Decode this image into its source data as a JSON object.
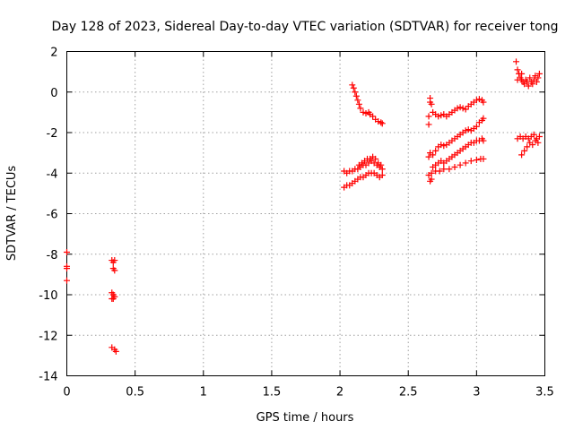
{
  "chart_data": {
    "type": "scatter",
    "title": "Day 128 of 2023, Sidereal Day-to-day VTEC variation (SDTVAR) for receiver tong",
    "xlabel": "GPS time / hours",
    "ylabel": "SDTVAR / TECUs",
    "xlim": [
      0,
      3.5
    ],
    "ylim": [
      -14,
      2
    ],
    "xticks": [
      0,
      0.5,
      1,
      1.5,
      2,
      2.5,
      3,
      3.5
    ],
    "yticks": [
      -14,
      -12,
      -10,
      -8,
      -6,
      -4,
      -2,
      0,
      2
    ],
    "xtick_labels": [
      "0",
      "0.5",
      "1",
      "1.5",
      "2",
      "2.5",
      "3",
      "3.5"
    ],
    "ytick_labels": [
      "-14",
      "-12",
      "-10",
      "-8",
      "-6",
      "-4",
      "-2",
      "0",
      "2"
    ],
    "grid": true,
    "marker": "+",
    "color": "#ff0000",
    "series": [
      {
        "points": [
          [
            0.0,
            -7.9
          ],
          [
            0.0,
            -8.6
          ],
          [
            0.0,
            -8.7
          ],
          [
            0.0,
            -9.3
          ],
          [
            0.33,
            -8.3
          ],
          [
            0.34,
            -8.4
          ],
          [
            0.35,
            -8.3
          ],
          [
            0.34,
            -8.7
          ],
          [
            0.35,
            -8.8
          ],
          [
            0.33,
            -9.9
          ],
          [
            0.34,
            -10.0
          ],
          [
            0.35,
            -10.1
          ],
          [
            0.34,
            -10.2
          ],
          [
            0.33,
            -10.2
          ],
          [
            0.33,
            -12.6
          ],
          [
            0.35,
            -12.7
          ],
          [
            0.36,
            -12.8
          ],
          [
            2.09,
            0.35
          ],
          [
            2.1,
            0.2
          ],
          [
            2.11,
            0.0
          ],
          [
            2.12,
            -0.2
          ],
          [
            2.13,
            -0.4
          ],
          [
            2.14,
            -0.6
          ],
          [
            2.15,
            -0.8
          ],
          [
            2.17,
            -1.0
          ],
          [
            2.19,
            -1.05
          ],
          [
            2.21,
            -1.0
          ],
          [
            2.22,
            -1.1
          ],
          [
            2.24,
            -1.2
          ],
          [
            2.26,
            -1.35
          ],
          [
            2.28,
            -1.45
          ],
          [
            2.3,
            -1.5
          ],
          [
            2.31,
            -1.55
          ],
          [
            2.03,
            -4.7
          ],
          [
            2.05,
            -4.6
          ],
          [
            2.07,
            -4.6
          ],
          [
            2.09,
            -4.5
          ],
          [
            2.11,
            -4.4
          ],
          [
            2.13,
            -4.3
          ],
          [
            2.15,
            -4.2
          ],
          [
            2.17,
            -4.2
          ],
          [
            2.19,
            -4.1
          ],
          [
            2.21,
            -4.0
          ],
          [
            2.23,
            -4.0
          ],
          [
            2.25,
            -4.0
          ],
          [
            2.27,
            -4.1
          ],
          [
            2.29,
            -4.2
          ],
          [
            2.31,
            -4.1
          ],
          [
            2.03,
            -3.9
          ],
          [
            2.05,
            -4.0
          ],
          [
            2.07,
            -3.9
          ],
          [
            2.09,
            -3.9
          ],
          [
            2.11,
            -3.8
          ],
          [
            2.13,
            -3.8
          ],
          [
            2.15,
            -3.7
          ],
          [
            2.17,
            -3.6
          ],
          [
            2.19,
            -3.6
          ],
          [
            2.21,
            -3.5
          ],
          [
            2.23,
            -3.4
          ],
          [
            2.25,
            -3.5
          ],
          [
            2.27,
            -3.6
          ],
          [
            2.29,
            -3.7
          ],
          [
            2.31,
            -3.8
          ],
          [
            2.14,
            -3.6
          ],
          [
            2.16,
            -3.5
          ],
          [
            2.18,
            -3.4
          ],
          [
            2.2,
            -3.3
          ],
          [
            2.22,
            -3.3
          ],
          [
            2.24,
            -3.2
          ],
          [
            2.26,
            -3.3
          ],
          [
            2.28,
            -3.5
          ],
          [
            2.3,
            -3.6
          ],
          [
            2.65,
            -1.6
          ],
          [
            2.65,
            -1.2
          ],
          [
            2.66,
            -0.5
          ],
          [
            2.66,
            -0.3
          ],
          [
            2.67,
            -0.6
          ],
          [
            2.68,
            -1.0
          ],
          [
            2.7,
            -1.1
          ],
          [
            2.72,
            -1.2
          ],
          [
            2.74,
            -1.15
          ],
          [
            2.76,
            -1.1
          ],
          [
            2.78,
            -1.2
          ],
          [
            2.8,
            -1.1
          ],
          [
            2.82,
            -1.0
          ],
          [
            2.84,
            -0.9
          ],
          [
            2.86,
            -0.8
          ],
          [
            2.88,
            -0.75
          ],
          [
            2.9,
            -0.8
          ],
          [
            2.92,
            -0.85
          ],
          [
            2.94,
            -0.7
          ],
          [
            2.96,
            -0.6
          ],
          [
            2.98,
            -0.5
          ],
          [
            3.0,
            -0.4
          ],
          [
            3.02,
            -0.35
          ],
          [
            3.04,
            -0.4
          ],
          [
            3.05,
            -0.5
          ],
          [
            2.65,
            -3.2
          ],
          [
            2.66,
            -3.0
          ],
          [
            2.68,
            -3.1
          ],
          [
            2.7,
            -2.9
          ],
          [
            2.72,
            -2.7
          ],
          [
            2.74,
            -2.6
          ],
          [
            2.76,
            -2.65
          ],
          [
            2.78,
            -2.6
          ],
          [
            2.8,
            -2.5
          ],
          [
            2.82,
            -2.4
          ],
          [
            2.84,
            -2.3
          ],
          [
            2.86,
            -2.2
          ],
          [
            2.88,
            -2.1
          ],
          [
            2.9,
            -2.0
          ],
          [
            2.92,
            -1.9
          ],
          [
            2.94,
            -1.85
          ],
          [
            2.96,
            -1.9
          ],
          [
            2.98,
            -1.8
          ],
          [
            3.0,
            -1.7
          ],
          [
            3.02,
            -1.5
          ],
          [
            3.04,
            -1.4
          ],
          [
            3.05,
            -1.3
          ],
          [
            2.65,
            -4.1
          ],
          [
            2.66,
            -4.4
          ],
          [
            2.67,
            -4.3
          ],
          [
            2.68,
            -3.7
          ],
          [
            2.7,
            -3.6
          ],
          [
            2.72,
            -3.5
          ],
          [
            2.74,
            -3.4
          ],
          [
            2.76,
            -3.5
          ],
          [
            2.78,
            -3.4
          ],
          [
            2.8,
            -3.3
          ],
          [
            2.82,
            -3.2
          ],
          [
            2.84,
            -3.1
          ],
          [
            2.86,
            -3.0
          ],
          [
            2.88,
            -2.9
          ],
          [
            2.9,
            -2.8
          ],
          [
            2.92,
            -2.7
          ],
          [
            2.94,
            -2.6
          ],
          [
            2.96,
            -2.5
          ],
          [
            2.98,
            -2.5
          ],
          [
            3.0,
            -2.4
          ],
          [
            3.02,
            -2.4
          ],
          [
            3.04,
            -2.3
          ],
          [
            3.05,
            -2.4
          ],
          [
            2.67,
            -4.0
          ],
          [
            2.7,
            -3.9
          ],
          [
            2.73,
            -3.9
          ],
          [
            2.76,
            -3.8
          ],
          [
            2.8,
            -3.8
          ],
          [
            2.84,
            -3.7
          ],
          [
            2.88,
            -3.6
          ],
          [
            2.92,
            -3.5
          ],
          [
            2.96,
            -3.4
          ],
          [
            3.0,
            -3.35
          ],
          [
            3.03,
            -3.3
          ],
          [
            3.05,
            -3.3
          ],
          [
            3.29,
            1.5
          ],
          [
            3.3,
            1.1
          ],
          [
            3.31,
            0.9
          ],
          [
            3.32,
            0.7
          ],
          [
            3.33,
            0.6
          ],
          [
            3.34,
            0.5
          ],
          [
            3.35,
            0.4
          ],
          [
            3.36,
            0.6
          ],
          [
            3.37,
            0.5
          ],
          [
            3.38,
            0.3
          ],
          [
            3.39,
            0.7
          ],
          [
            3.4,
            0.5
          ],
          [
            3.41,
            0.4
          ],
          [
            3.42,
            0.6
          ],
          [
            3.43,
            0.8
          ],
          [
            3.44,
            0.5
          ],
          [
            3.45,
            0.7
          ],
          [
            3.46,
            0.9
          ],
          [
            3.3,
            0.6
          ],
          [
            3.33,
            0.9
          ],
          [
            3.3,
            -2.3
          ],
          [
            3.32,
            -2.2
          ],
          [
            3.34,
            -2.3
          ],
          [
            3.36,
            -2.2
          ],
          [
            3.38,
            -2.3
          ],
          [
            3.4,
            -2.2
          ],
          [
            3.42,
            -2.1
          ],
          [
            3.44,
            -2.3
          ],
          [
            3.46,
            -2.2
          ],
          [
            3.33,
            -3.1
          ],
          [
            3.35,
            -2.9
          ],
          [
            3.37,
            -2.7
          ],
          [
            3.39,
            -2.5
          ],
          [
            3.41,
            -2.6
          ],
          [
            3.43,
            -2.4
          ],
          [
            3.45,
            -2.5
          ]
        ]
      }
    ]
  }
}
